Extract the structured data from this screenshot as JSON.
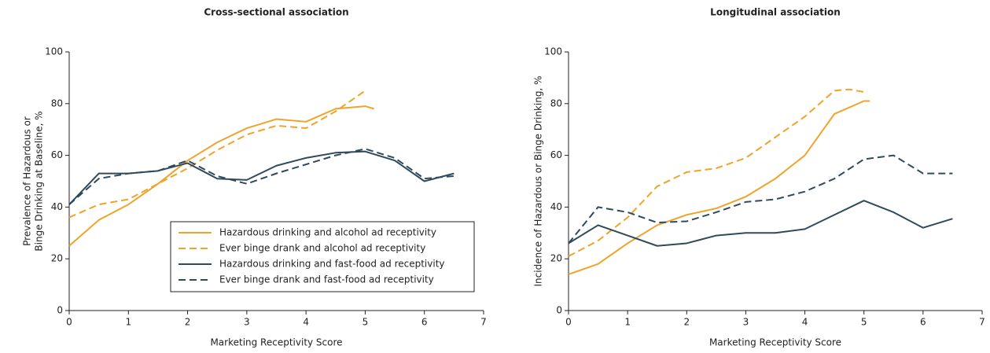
{
  "chart_data": [
    {
      "type": "line",
      "title": "Cross-sectional association",
      "xlabel": "Marketing Receptivity Score",
      "ylabel": [
        "Prevalence of Hazardous or",
        "Binge Drinking at Baseline, %"
      ],
      "xlim": [
        0,
        7
      ],
      "ylim": [
        0,
        100
      ],
      "xticks": [
        0,
        1,
        2,
        3,
        4,
        5,
        6,
        7
      ],
      "yticks": [
        0,
        20,
        40,
        60,
        80,
        100
      ],
      "legend": "lower right",
      "series": [
        {
          "name": "Hazardous drinking and alcohol ad receptivity",
          "color": "#f0a32a",
          "style": "solid",
          "x": [
            0,
            0.5,
            1,
            1.5,
            2,
            2.5,
            3,
            3.5,
            4,
            4.5,
            5,
            5.15
          ],
          "values": [
            25,
            35,
            41,
            49,
            58,
            65,
            70.5,
            74,
            73,
            78,
            79,
            78
          ]
        },
        {
          "name": "Ever binge drank and alcohol ad receptivity",
          "color": "#f0a32a",
          "style": "dashed",
          "x": [
            0,
            0.5,
            1,
            1.5,
            2,
            2.5,
            3,
            3.5,
            4,
            4.5,
            5
          ],
          "values": [
            36,
            41,
            43,
            49,
            55,
            62,
            68,
            71.5,
            70.5,
            77,
            85
          ]
        },
        {
          "name": "Hazardous drinking and fast-food ad receptivity",
          "color": "#2f4a5c",
          "style": "solid",
          "x": [
            0,
            0.5,
            1,
            1.5,
            2,
            2.5,
            3,
            3.5,
            4,
            4.5,
            5,
            5.5,
            6,
            6.5
          ],
          "values": [
            41,
            53,
            53,
            54,
            57,
            51,
            50.5,
            56,
            59,
            61,
            61.5,
            58,
            50,
            53
          ]
        },
        {
          "name": "Ever binge drank and fast-food ad receptivity",
          "color": "#2f4a5c",
          "style": "dashed",
          "x": [
            0,
            0.5,
            1,
            1.5,
            2,
            2.5,
            3,
            3.5,
            4,
            4.5,
            5,
            5.5,
            6,
            6.5
          ],
          "values": [
            41,
            51,
            53,
            54,
            58,
            52,
            49,
            53,
            56.5,
            60,
            62.5,
            59,
            51,
            52
          ]
        }
      ]
    },
    {
      "type": "line",
      "title": "Longitudinal association",
      "xlabel": "Marketing Receptivity Score",
      "ylabel": [
        "Incidence of Hazardous or Binge Drinking, %"
      ],
      "xlim": [
        0,
        7
      ],
      "ylim": [
        0,
        100
      ],
      "xticks": [
        0,
        1,
        2,
        3,
        4,
        5,
        6,
        7
      ],
      "yticks": [
        0,
        20,
        40,
        60,
        80,
        100
      ],
      "series": [
        {
          "color": "#f0a32a",
          "style": "solid",
          "x": [
            0,
            0.5,
            1,
            1.5,
            2,
            2.5,
            3,
            3.5,
            4,
            4.5,
            5,
            5.1
          ],
          "values": [
            14,
            18,
            26,
            33,
            37,
            39.5,
            44,
            51,
            60,
            76,
            81,
            81
          ]
        },
        {
          "color": "#f0a32a",
          "style": "dashed",
          "x": [
            0,
            0.5,
            1,
            1.5,
            2,
            2.5,
            3,
            3.5,
            4,
            4.5,
            4.75,
            5
          ],
          "values": [
            21,
            27,
            36,
            48,
            53.5,
            55,
            59,
            67,
            75,
            85,
            85.5,
            84.5
          ]
        },
        {
          "color": "#2f4a5c",
          "style": "solid",
          "x": [
            0,
            0.5,
            1,
            1.5,
            2,
            2.5,
            3,
            3.5,
            4,
            4.5,
            5,
            5.5,
            6,
            6.5
          ],
          "values": [
            26,
            33,
            29,
            25,
            26,
            29,
            30,
            30,
            31.5,
            37,
            42.5,
            38,
            32,
            35.5
          ]
        },
        {
          "color": "#2f4a5c",
          "style": "dashed",
          "x": [
            0,
            0.5,
            1,
            1.5,
            2,
            2.5,
            3,
            3.5,
            4,
            4.5,
            5,
            5.5,
            6,
            6.5
          ],
          "values": [
            26,
            40,
            38,
            34,
            34.5,
            38,
            42,
            43,
            46,
            51,
            58.5,
            60,
            53,
            53
          ]
        }
      ]
    }
  ]
}
